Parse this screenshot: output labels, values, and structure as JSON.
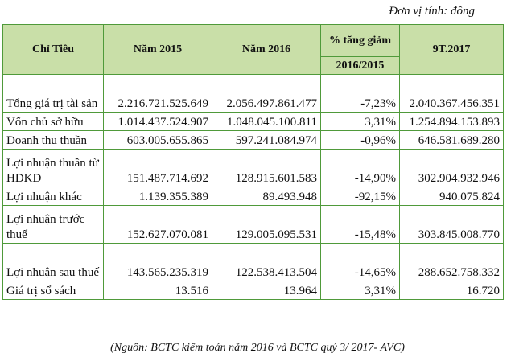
{
  "unit_note": "Đơn vị tính: đồng",
  "headers": {
    "col1": "Chỉ Tiêu",
    "col2": "Năm 2015",
    "col3": "Năm 2016",
    "col4_top": "% tăng giảm",
    "col4_sub": "2016/2015",
    "col5": "9T.2017"
  },
  "rows": [
    {
      "name": "Tổng giá trị tài sản",
      "y2015": "2.216.721.525.649",
      "y2016": "2.056.497.861.477",
      "pct": "-7,23%",
      "t9_2017": "2.040.367.456.351"
    },
    {
      "name": "Vốn chủ sở hữu",
      "y2015": "1.014.437.524.907",
      "y2016": "1.048.045.100.811",
      "pct": "3,31%",
      "t9_2017": "1.254.894.153.893"
    },
    {
      "name": "Doanh thu thuần",
      "y2015": "603.005.655.865",
      "y2016": "597.241.084.974",
      "pct": "-0,96%",
      "t9_2017": "646.581.689.280"
    },
    {
      "name": "Lợi nhuận thuần từ HĐKD",
      "y2015": "151.487.714.692",
      "y2016": "128.915.601.583",
      "pct": "-14,90%",
      "t9_2017": "302.904.932.946"
    },
    {
      "name": "Lợi nhuận khác",
      "y2015": "1.139.355.389",
      "y2016": "89.493.948",
      "pct": "-92,15%",
      "t9_2017": "940.075.824"
    },
    {
      "name": "Lợi nhuận trước thuế",
      "y2015": "152.627.070.081",
      "y2016": "129.005.095.531",
      "pct": "-15,48%",
      "t9_2017": "303.845.008.770"
    },
    {
      "name": "Lợi nhuận sau thuế",
      "y2015": "143.565.235.319",
      "y2016": "122.538.413.504",
      "pct": "-14,65%",
      "t9_2017": "288.652.758.332"
    },
    {
      "name": "Giá trị sổ sách",
      "y2015": "13.516",
      "y2016": "13.964",
      "pct": "3,31%",
      "t9_2017": "16.720"
    }
  ],
  "source_note": "(Nguồn: BCTC kiểm toán năm 2016 và BCTC quý 3/ 2017- AVC)",
  "colors": {
    "header_bg": "#c9dfa8",
    "border": "#4f9a3a"
  }
}
